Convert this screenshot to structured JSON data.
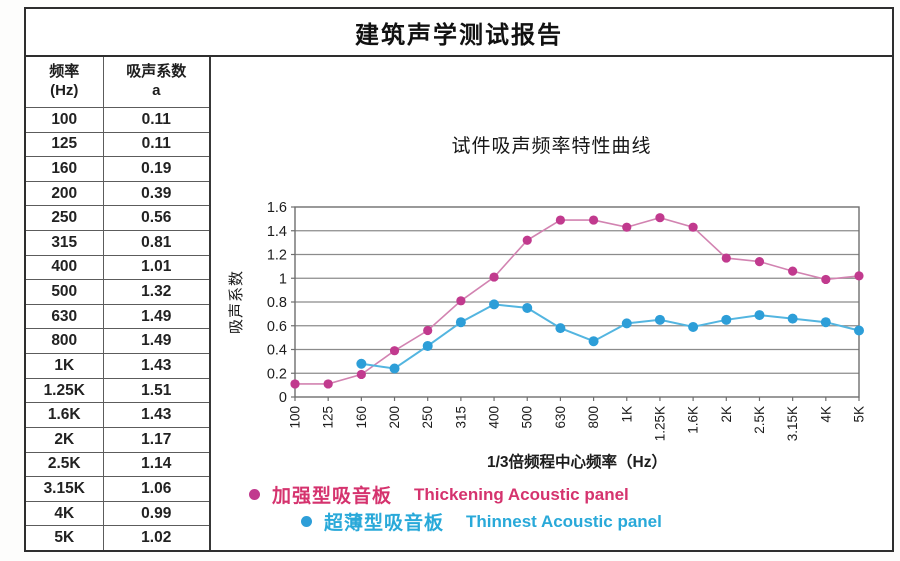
{
  "report": {
    "title": "建筑声学测试报告"
  },
  "table": {
    "headers": {
      "freq_line1": "频率",
      "freq_line2": "(Hz)",
      "alpha_line1": "吸声系数",
      "alpha_line2": "a"
    },
    "rows": [
      {
        "freq": "100",
        "alpha": "0.11"
      },
      {
        "freq": "125",
        "alpha": "0.11"
      },
      {
        "freq": "160",
        "alpha": "0.19"
      },
      {
        "freq": "200",
        "alpha": "0.39"
      },
      {
        "freq": "250",
        "alpha": "0.56"
      },
      {
        "freq": "315",
        "alpha": "0.81"
      },
      {
        "freq": "400",
        "alpha": "1.01"
      },
      {
        "freq": "500",
        "alpha": "1.32"
      },
      {
        "freq": "630",
        "alpha": "1.49"
      },
      {
        "freq": "800",
        "alpha": "1.49"
      },
      {
        "freq": "1K",
        "alpha": "1.43"
      },
      {
        "freq": "1.25K",
        "alpha": "1.51"
      },
      {
        "freq": "1.6K",
        "alpha": "1.43"
      },
      {
        "freq": "2K",
        "alpha": "1.17"
      },
      {
        "freq": "2.5K",
        "alpha": "1.14"
      },
      {
        "freq": "3.15K",
        "alpha": "1.06"
      },
      {
        "freq": "4K",
        "alpha": "0.99"
      },
      {
        "freq": "5K",
        "alpha": "1.02"
      }
    ]
  },
  "chart_data": {
    "type": "line",
    "title": "试件吸声频率特性曲线",
    "xlabel": "1/3倍频程中心频率（Hz）",
    "ylabel": "吸声系数",
    "ylim": [
      0,
      1.6
    ],
    "ytick_step": 0.2,
    "yticks": [
      "0",
      "0.2",
      "0.4",
      "0.6",
      "0.8",
      "1",
      "1.2",
      "1.4",
      "1.6"
    ],
    "grid": true,
    "legend_position": "bottom",
    "categories": [
      "100",
      "125",
      "160",
      "200",
      "250",
      "315",
      "400",
      "500",
      "630",
      "800",
      "1K",
      "1.25K",
      "1.6K",
      "2K",
      "2.5K",
      "3.15K",
      "4K",
      "5K"
    ],
    "series": [
      {
        "name_cn": "加强型吸音板",
        "name_en": "Thickening Acoustic panel",
        "marker_color": "#c13a8e",
        "line_color": "#d283b1",
        "legend_text_color": "#d5336e",
        "values": [
          0.11,
          0.11,
          0.19,
          0.39,
          0.56,
          0.81,
          1.01,
          1.32,
          1.49,
          1.49,
          1.43,
          1.51,
          1.43,
          1.17,
          1.14,
          1.06,
          0.99,
          1.02
        ]
      },
      {
        "name_cn": "超薄型吸音板",
        "name_en": "Thinnest Acoustic panel",
        "marker_color": "#2d9ed8",
        "line_color": "#53b5e0",
        "legend_text_color": "#29a9d9",
        "values": [
          null,
          null,
          0.28,
          0.24,
          0.43,
          0.63,
          0.78,
          0.75,
          0.58,
          0.47,
          0.62,
          0.65,
          0.59,
          0.65,
          0.69,
          0.66,
          0.63,
          0.56
        ]
      }
    ],
    "axis_color": "#6e6e6e",
    "grid_color": "#8b8b8b"
  }
}
